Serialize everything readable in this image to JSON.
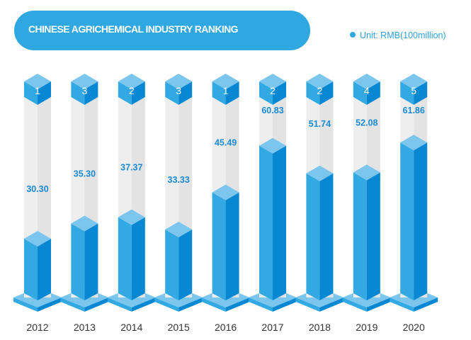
{
  "chart_data": {
    "type": "bar",
    "title": "CHINESE AGRICHEMICAL INDUSTRY RANKING",
    "unit_label": "Unit: RMB(100million)",
    "categories": [
      "2012",
      "2013",
      "2014",
      "2015",
      "2016",
      "2017",
      "2018",
      "2019",
      "2020"
    ],
    "values": [
      30.3,
      35.3,
      37.37,
      33.33,
      45.49,
      60.83,
      51.74,
      52.08,
      61.86
    ],
    "value_labels": [
      "30.30",
      "35.30",
      "37.37",
      "33.33",
      "45.49",
      "60.83",
      "51.74",
      "52.08",
      "61.86"
    ],
    "ranks": [
      "1",
      "3",
      "2",
      "3",
      "1",
      "2",
      "2",
      "4",
      "5"
    ],
    "xlabel": "",
    "ylabel": "",
    "ylim": [
      0,
      70
    ],
    "colors": {
      "light": "#33a9e3",
      "dark": "#0887d3",
      "top": "#7cc6ee",
      "column": "#eeeeee",
      "column_dark": "#e3e3e3",
      "label": "#1a8ad4"
    }
  }
}
